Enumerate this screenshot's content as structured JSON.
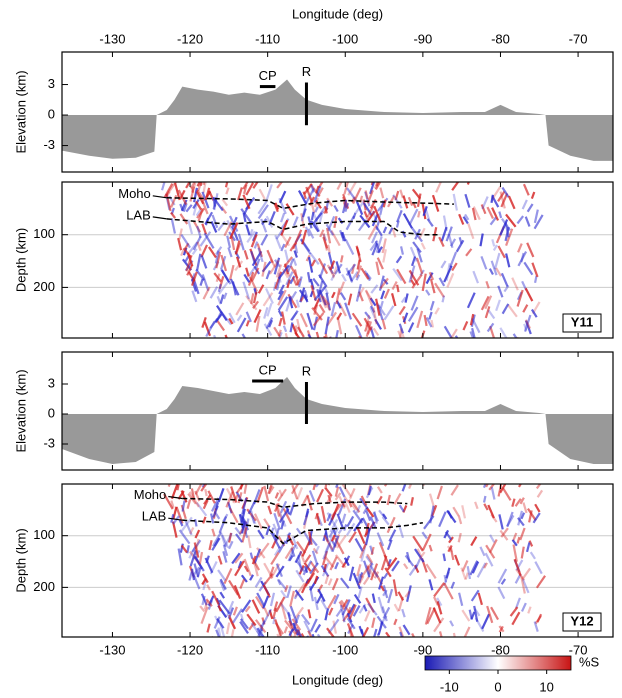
{
  "chart_data": [
    {
      "type": "area",
      "xlabel": "Longitude (deg)",
      "ylabel": "Elevation (km)",
      "color": "#999999",
      "xlim": [
        -136.5,
        -65.5
      ],
      "xticks": [
        -130,
        -120,
        -110,
        -100,
        -90,
        -80,
        -70
      ],
      "ylim": [
        -5.6,
        6.2
      ],
      "yticks": [
        -3,
        0,
        3
      ],
      "x": [
        -136.5,
        -133,
        -130,
        -127,
        -124.6,
        -124.3,
        -123,
        -122,
        -121,
        -119,
        -117,
        -115,
        -113,
        -111,
        -109,
        -107.5,
        -106.5,
        -105,
        -103,
        -100,
        -95,
        -90,
        -85,
        -82,
        -80,
        -78,
        -75,
        -74.2,
        -73.8,
        -71,
        -68,
        -65.5
      ],
      "values": [
        -3.5,
        -4,
        -4.3,
        -4.2,
        -3.6,
        0,
        0.5,
        1.5,
        2.8,
        2.5,
        2.3,
        2.0,
        2.2,
        2.0,
        2.5,
        3.5,
        2.5,
        1.5,
        1.0,
        0.6,
        0.3,
        0.2,
        0.3,
        0.3,
        1.0,
        0.3,
        0.1,
        0,
        -3,
        -4,
        -4.5,
        -4.5
      ],
      "annotations": [
        {
          "text": "CP",
          "x": [
            -111,
            -109
          ],
          "y": [
            2.8,
            2.8
          ]
        },
        {
          "text": "R",
          "x": [
            -105,
            -105
          ],
          "y": [
            3.2,
            -1
          ]
        }
      ]
    },
    {
      "type": "section",
      "ylabel": "Depth (km)",
      "ylim": [
        296,
        0
      ],
      "yticks": [
        100,
        200
      ],
      "grid": true,
      "label": "Y11",
      "series": [
        {
          "name": "Moho",
          "color": "#000000",
          "x": [
            -123,
            -115,
            -110,
            -108,
            -104,
            -100,
            -95,
            -90,
            -86
          ],
          "values": [
            30,
            32,
            35,
            50,
            40,
            35,
            38,
            40,
            42
          ]
        },
        {
          "name": "LAB",
          "color": "#000000",
          "x": [
            -123,
            -115,
            -110,
            -108,
            -105,
            -100,
            -95,
            -93,
            -90,
            -88
          ],
          "values": [
            70,
            80,
            75,
            90,
            80,
            75,
            75,
            95,
            100,
            100
          ]
        }
      ]
    },
    {
      "type": "area",
      "ylabel": "Elevation (km)",
      "color": "#999999",
      "ylim": [
        -5.6,
        6.2
      ],
      "yticks": [
        -3,
        0,
        3
      ],
      "x": [
        -136.5,
        -133,
        -130,
        -127,
        -124.6,
        -124.3,
        -123,
        -122,
        -121,
        -119,
        -117,
        -115,
        -113,
        -111,
        -109,
        -107.5,
        -106.5,
        -105,
        -103,
        -100,
        -95,
        -90,
        -85,
        -82,
        -80,
        -78,
        -75,
        -74.2,
        -73.8,
        -71,
        -68,
        -65.5
      ],
      "values": [
        -3.5,
        -4.5,
        -5,
        -4.8,
        -3.8,
        0,
        0.5,
        1.5,
        2.8,
        2.6,
        2.3,
        2.0,
        2.2,
        2.0,
        2.6,
        3.7,
        2.6,
        1.5,
        1.0,
        0.6,
        0.3,
        0.2,
        0.3,
        0.3,
        1.0,
        0.3,
        0.1,
        0,
        -3,
        -4.5,
        -5,
        -5
      ],
      "annotations": [
        {
          "text": "CP",
          "x": [
            -112,
            -108
          ],
          "y": [
            3.3,
            3.3
          ]
        },
        {
          "text": "R",
          "x": [
            -105,
            -105
          ],
          "y": [
            3.2,
            -1
          ]
        }
      ]
    },
    {
      "type": "section",
      "xlabel": "Longitude (deg)",
      "ylabel": "Depth (km)",
      "ylim": [
        296,
        0
      ],
      "yticks": [
        100,
        200
      ],
      "grid": true,
      "label": "Y12",
      "xticks": [
        -130,
        -120,
        -110,
        -100,
        -90,
        -80,
        -70
      ],
      "series": [
        {
          "name": "Moho",
          "color": "#000000",
          "x": [
            -121,
            -115,
            -110,
            -108,
            -104,
            -100,
            -95,
            -92
          ],
          "values": [
            28,
            30,
            35,
            45,
            38,
            35,
            35,
            38
          ]
        },
        {
          "name": "LAB",
          "color": "#000000",
          "x": [
            -121,
            -115,
            -110,
            -108,
            -105,
            -100,
            -95,
            -92,
            -90
          ],
          "values": [
            70,
            75,
            85,
            115,
            90,
            85,
            85,
            80,
            75
          ]
        }
      ]
    },
    {
      "type": "colorbar",
      "label": "%S",
      "lim": [
        -15,
        15
      ],
      "ticks": [
        -10,
        0,
        10
      ],
      "colors": [
        "#1a1ab4",
        "#ffffff",
        "#c81414"
      ]
    }
  ]
}
